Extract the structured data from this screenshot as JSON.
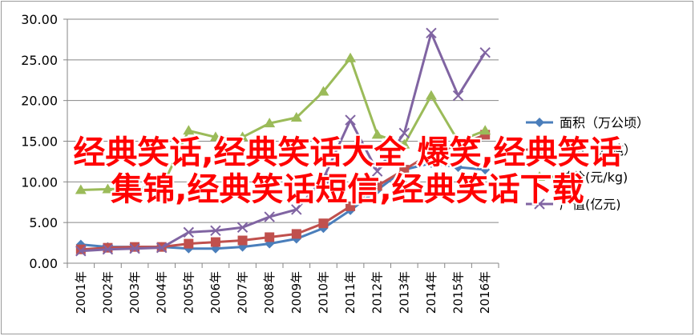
{
  "chart_data": {
    "type": "line",
    "categories": [
      "2001年",
      "2002年",
      "2003年",
      "2004年",
      "2005年",
      "2006年",
      "2007年",
      "2008年",
      "2009年",
      "2010年",
      "2011年",
      "2012年",
      "2013年",
      "2014年",
      "2015年",
      "2016年"
    ],
    "ylim": [
      0,
      30
    ],
    "y_ticks": [
      "0.00",
      "5.00",
      "10.00",
      "15.00",
      "20.00",
      "25.00",
      "30.00"
    ],
    "y_tick_values": [
      0,
      5,
      10,
      15,
      20,
      25,
      30
    ],
    "grid": true,
    "legend_position": "right",
    "series": [
      {
        "name": "面积（万公顷）",
        "color": "#4a7ebb",
        "marker": "diamond",
        "values": [
          2.3,
          2.0,
          2.0,
          2.0,
          1.8,
          1.8,
          2.0,
          2.4,
          3.0,
          4.3,
          6.5,
          9.0,
          11.5,
          12.3,
          11.8,
          11.5
        ]
      },
      {
        "name": "产量（万吨）",
        "color": "#c0504d",
        "marker": "square",
        "values": [
          1.7,
          1.9,
          2.0,
          2.0,
          2.4,
          2.6,
          2.8,
          3.2,
          3.6,
          4.9,
          7.0,
          9.5,
          11.5,
          13.5,
          14.5,
          15.8
        ]
      },
      {
        "name": "单价(元/kg)",
        "color": "#9bbb59",
        "marker": "triangle",
        "values": [
          9.0,
          9.1,
          9.2,
          9.3,
          16.3,
          15.5,
          15.5,
          17.2,
          17.9,
          21.1,
          25.2,
          15.8,
          14.6,
          20.6,
          15.0,
          16.3
        ]
      },
      {
        "name": "产值(亿元)",
        "color": "#8064a2",
        "marker": "x",
        "values": [
          1.5,
          1.7,
          1.8,
          1.9,
          3.8,
          4.0,
          4.4,
          5.7,
          6.6,
          10.4,
          17.6,
          11.3,
          16.0,
          28.3,
          20.6,
          25.9
        ]
      }
    ]
  },
  "overlay": {
    "line1": "经典笑话,经典笑话大全 爆笑,经典笑话",
    "line2": "集锦,经典笑话短信,经典笑话下载"
  },
  "colors": {
    "overlay_text": "#ff0000",
    "axis": "#868686",
    "grid": "#868686"
  }
}
